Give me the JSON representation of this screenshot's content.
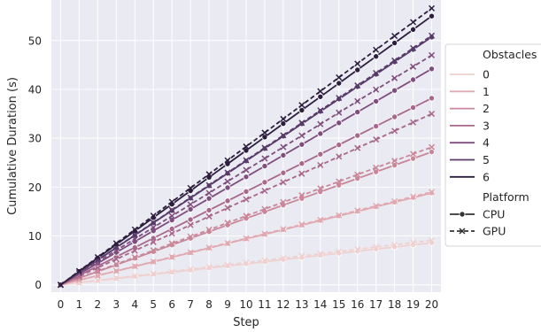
{
  "chart_data": {
    "type": "line",
    "xlabel": "Step",
    "ylabel": "Cumulative Duration (s)",
    "xlim": [
      -0.5,
      20.5
    ],
    "ylim": [
      -1.5,
      58.3
    ],
    "x_ticks": [
      "0",
      "1",
      "2",
      "3",
      "4",
      "5",
      "6",
      "7",
      "8",
      "9",
      "10",
      "11",
      "12",
      "13",
      "14",
      "15",
      "16",
      "17",
      "18",
      "19",
      "20"
    ],
    "y_ticks": [
      "0",
      "10",
      "20",
      "30",
      "40",
      "50"
    ],
    "grid": true,
    "background": "#eaeaf2",
    "legend": {
      "placement": "outside-right",
      "hue_title": "Obstacles",
      "style_title": "Platform",
      "hue_entries": [
        "0",
        "1",
        "2",
        "3",
        "4",
        "5",
        "6"
      ],
      "style_entries": [
        "CPU",
        "GPU"
      ]
    },
    "colors": [
      "#efd1d1",
      "#e1a9b1",
      "#c98799",
      "#a9678b",
      "#7f4d7e",
      "#583b6b",
      "#2d1e3e"
    ],
    "x": [
      0,
      1,
      2,
      3,
      4,
      5,
      6,
      7,
      8,
      9,
      10,
      11,
      12,
      13,
      14,
      15,
      16,
      17,
      18,
      19,
      20
    ],
    "final_values": {
      "CPU": [
        8.6,
        18.8,
        27.2,
        38.2,
        44.2,
        50.7,
        55.0
      ],
      "GPU": [
        9.1,
        19.0,
        28.2,
        35.0,
        47.0,
        51.0,
        56.6
      ]
    }
  }
}
